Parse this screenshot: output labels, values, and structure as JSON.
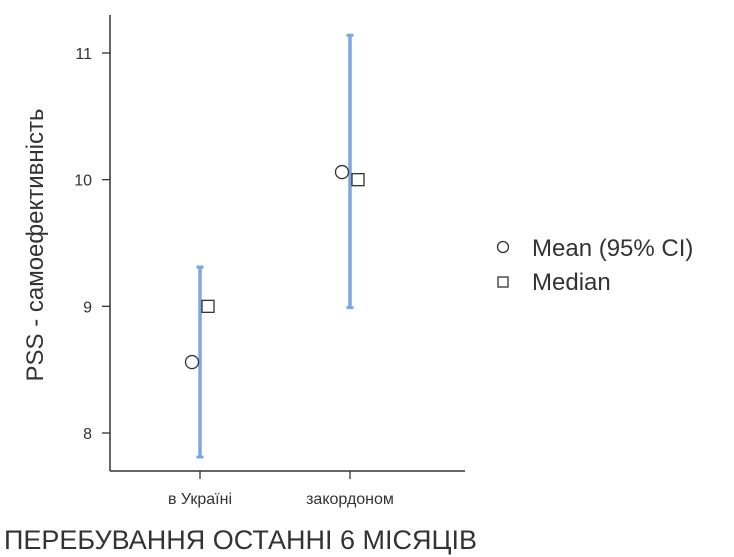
{
  "chart_data": {
    "type": "scatter",
    "title": "",
    "xlabel": "ПЕРЕБУВАННЯ ОСТАННІ 6 МІСЯЦІВ",
    "ylabel": "PSS - самоефективність",
    "categories": [
      "в Україні",
      "закордоном"
    ],
    "ylim": [
      7.7,
      11.3
    ],
    "yticks": [
      8,
      9,
      10,
      11
    ],
    "yticks_labels": [
      "8",
      "9",
      "10",
      "11"
    ],
    "series": [
      {
        "name": "Mean (95% CI)",
        "values": [
          8.56,
          10.06
        ],
        "ci_low": [
          7.81,
          8.99
        ],
        "ci_high": [
          9.31,
          11.14
        ]
      },
      {
        "name": "Median",
        "values": [
          9.0,
          10.0
        ]
      }
    ],
    "grid": false,
    "legend_position": "right",
    "colors": {
      "ci": "#7da7e0",
      "marker_stroke": "#333333",
      "axis": "#333333"
    }
  }
}
